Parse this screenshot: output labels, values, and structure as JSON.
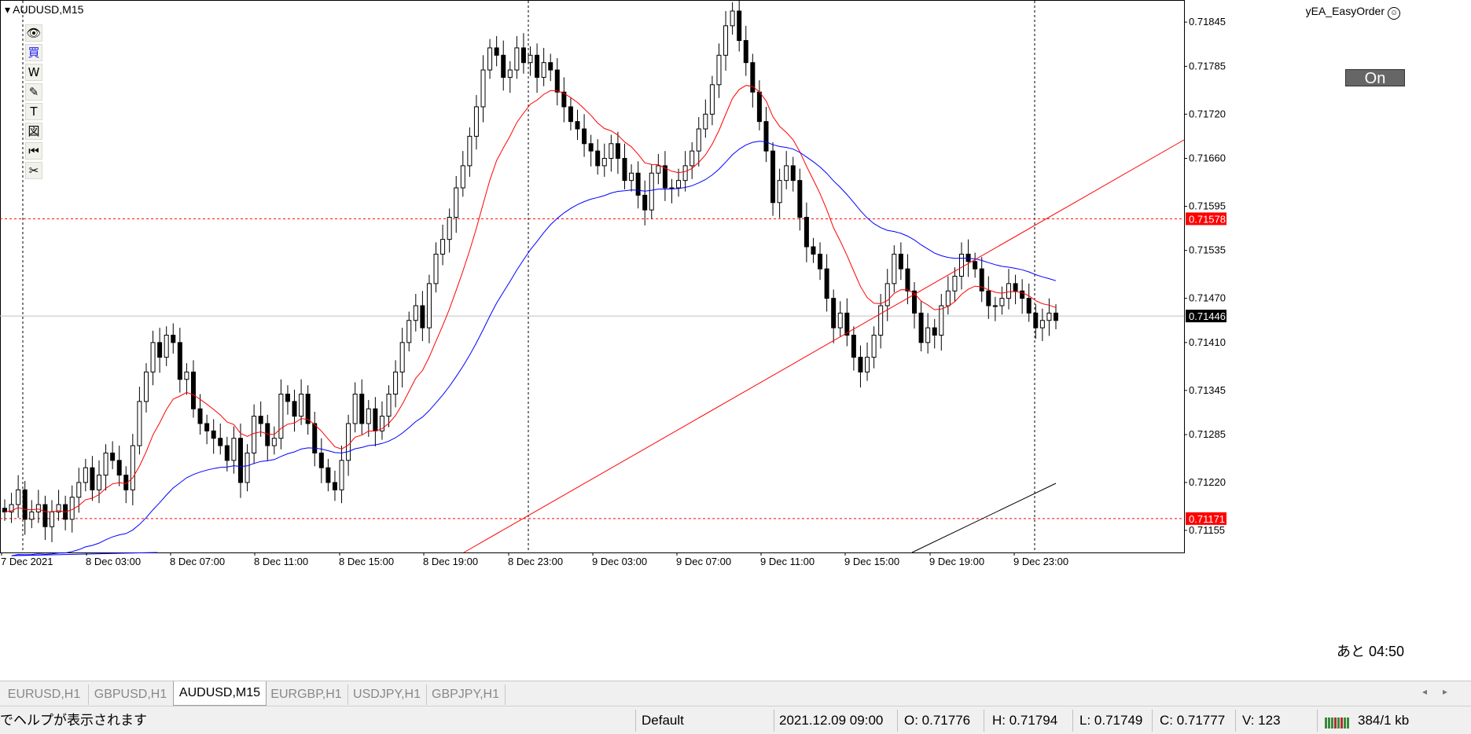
{
  "window": {
    "symbol_label": "AUDUSD,M15",
    "ea_label": "yEA_EasyOrder",
    "ea_icon": "smiley-icon",
    "on_button": "On",
    "remaining": "あと 04:50"
  },
  "toolbar": {
    "items": [
      {
        "name": "eye-icon",
        "glyph": "👁"
      },
      {
        "name": "buy-kanji-icon",
        "glyph": "買"
      },
      {
        "name": "w-icon",
        "glyph": "W"
      },
      {
        "name": "pencil-icon",
        "glyph": "✎"
      },
      {
        "name": "text-icon",
        "glyph": "T"
      },
      {
        "name": "image-icon",
        "glyph": "図"
      },
      {
        "name": "rewind-icon",
        "glyph": "⏮"
      },
      {
        "name": "scissors-icon",
        "glyph": "✂"
      }
    ]
  },
  "chart_data": {
    "type": "candlestick",
    "price_axis": [
      "0.71845",
      "0.71785",
      "0.71720",
      "0.71660",
      "0.71595",
      "0.71535",
      "0.71470",
      "0.71410",
      "0.71345",
      "0.71285",
      "0.71220",
      "0.71155"
    ],
    "time_axis": [
      "7 Dec 2021",
      "8 Dec 03:00",
      "8 Dec 07:00",
      "8 Dec 11:00",
      "8 Dec 15:00",
      "8 Dec 19:00",
      "8 Dec 23:00",
      "9 Dec 03:00",
      "9 Dec 07:00",
      "9 Dec 11:00",
      "9 Dec 15:00",
      "9 Dec 19:00",
      "9 Dec 23:00"
    ],
    "price_labels": {
      "upper_level": "0.71578",
      "current": "0.71446",
      "lower_level": "0.71171"
    },
    "colors": {
      "fast_ma": "#ff0000",
      "slow_ma": "#0000ff",
      "trendline": "#ff0000",
      "level": "#ff0000",
      "grid_vline": "#000000",
      "long_ma": "#000000",
      "current_label": "#000000",
      "level_label": "#ff0000"
    },
    "closes": [
      0.7118,
      0.7119,
      0.7121,
      0.7117,
      0.7118,
      0.7119,
      0.7116,
      0.7118,
      0.7119,
      0.7117,
      0.712,
      0.7122,
      0.7124,
      0.7121,
      0.7123,
      0.7126,
      0.7125,
      0.7123,
      0.7121,
      0.7127,
      0.7133,
      0.7137,
      0.7141,
      0.7139,
      0.7142,
      0.7141,
      0.7136,
      0.7137,
      0.7132,
      0.713,
      0.7129,
      0.7128,
      0.7127,
      0.7125,
      0.7128,
      0.7122,
      0.7126,
      0.7131,
      0.713,
      0.7127,
      0.7128,
      0.7134,
      0.7133,
      0.7131,
      0.7134,
      0.713,
      0.7126,
      0.7124,
      0.7122,
      0.7121,
      0.7125,
      0.713,
      0.7134,
      0.713,
      0.7132,
      0.7129,
      0.7131,
      0.7134,
      0.7137,
      0.7141,
      0.7144,
      0.7146,
      0.7143,
      0.7149,
      0.7153,
      0.7155,
      0.7158,
      0.7162,
      0.7165,
      0.7169,
      0.7173,
      0.7178,
      0.7181,
      0.718,
      0.7177,
      0.7178,
      0.7181,
      0.7179,
      0.718,
      0.7177,
      0.7179,
      0.7178,
      0.7175,
      0.7173,
      0.7171,
      0.717,
      0.7168,
      0.7167,
      0.7165,
      0.7166,
      0.7168,
      0.7166,
      0.7163,
      0.7164,
      0.7161,
      0.7159,
      0.7164,
      0.7165,
      0.7162,
      0.7162,
      0.7163,
      0.7165,
      0.7167,
      0.717,
      0.7172,
      0.7176,
      0.718,
      0.7184,
      0.7186,
      0.7182,
      0.7179,
      0.7175,
      0.7171,
      0.7167,
      0.716,
      0.7163,
      0.7165,
      0.7163,
      0.7158,
      0.7154,
      0.7153,
      0.7151,
      0.7147,
      0.7143,
      0.7145,
      0.7142,
      0.7139,
      0.7137,
      0.7139,
      0.7142,
      0.7146,
      0.7149,
      0.7153,
      0.7151,
      0.7148,
      0.7145,
      0.7141,
      0.7143,
      0.7142,
      0.7146,
      0.7148,
      0.715,
      0.7153,
      0.7152,
      0.7151,
      0.7148,
      0.7146,
      0.7146,
      0.7147,
      0.7149,
      0.7148,
      0.7147,
      0.7145,
      0.7143,
      0.7144,
      0.7145,
      0.7144
    ]
  },
  "tabs": [
    {
      "label": "EURUSD,H1",
      "active": false
    },
    {
      "label": "GBPUSD,H1",
      "active": false
    },
    {
      "label": "AUDUSD,M15",
      "active": true
    },
    {
      "label": "EURGBP,H1",
      "active": false
    },
    {
      "label": "USDJPY,H1",
      "active": false
    },
    {
      "label": "GBPJPY,H1",
      "active": false
    }
  ],
  "status": {
    "help": "でヘルプが表示されます",
    "profile": "Default",
    "datetime": "2021.12.09 09:00",
    "open": "O: 0.71776",
    "high": "H: 0.71794",
    "low": "L: 0.71749",
    "close": "C: 0.71777",
    "volume": "V: 123",
    "traffic": "384/1 kb"
  }
}
